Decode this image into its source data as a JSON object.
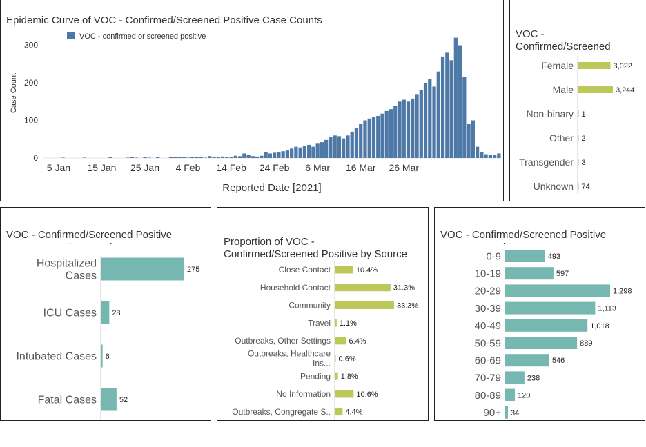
{
  "epi": {
    "title": "Epidemic Curve of VOC - Confirmed/Screened Positive Case Counts",
    "legend": "VOC - confirmed or screened positive",
    "ylabel": "Case Count",
    "xlabel": "Reported Date [2021]",
    "bar_color": "#4e79a7"
  },
  "gender": {
    "title": "VOC -\nConfirmed/Screened",
    "bar_color": "#bcc95a"
  },
  "severity": {
    "title": "VOC - Confirmed/Screened Positive\nCase Counts by Severity",
    "bar_color": "#76b7b2"
  },
  "source": {
    "title": "Proportion of VOC -\nConfirmed/Screened Positive by Source",
    "bar_color": "#bcc95a"
  },
  "age": {
    "title": "VOC - Confirmed/Screened Positive\nCase Counts by Age Group",
    "bar_color": "#76b7b2"
  },
  "chart_data": [
    {
      "id": "epi",
      "type": "bar",
      "title": "Epidemic Curve of VOC - Confirmed/Screened Positive Case Counts",
      "xlabel": "Reported Date [2021]",
      "ylabel": "Case Count",
      "ylim": [
        0,
        345
      ],
      "yticks": [
        0,
        100,
        200,
        300
      ],
      "x_start": "2021-01-02",
      "xticks": [
        {
          "date": "2021-01-05",
          "label": "5 Jan"
        },
        {
          "date": "2021-01-15",
          "label": "15 Jan"
        },
        {
          "date": "2021-01-25",
          "label": "25 Jan"
        },
        {
          "date": "2021-02-04",
          "label": "4 Feb"
        },
        {
          "date": "2021-02-14",
          "label": "14 Feb"
        },
        {
          "date": "2021-02-24",
          "label": "24 Feb"
        },
        {
          "date": "2021-03-06",
          "label": "6 Mar"
        },
        {
          "date": "2021-03-16",
          "label": "16 Mar"
        },
        {
          "date": "2021-03-26",
          "label": "26 Mar"
        }
      ],
      "series": [
        {
          "name": "VOC - confirmed or screened positive",
          "values": [
            0,
            0,
            0,
            0,
            1,
            0,
            0,
            0,
            0,
            1,
            0,
            0,
            0,
            0,
            0,
            2,
            0,
            0,
            0,
            1,
            2,
            1,
            0,
            3,
            1,
            0,
            2,
            0,
            0,
            3,
            2,
            3,
            2,
            1,
            3,
            2,
            2,
            1,
            5,
            3,
            2,
            4,
            3,
            2,
            6,
            5,
            12,
            8,
            5,
            4,
            6,
            15,
            12,
            14,
            15,
            18,
            20,
            25,
            30,
            28,
            32,
            35,
            30,
            38,
            42,
            48,
            55,
            60,
            58,
            52,
            60,
            70,
            80,
            90,
            100,
            105,
            110,
            112,
            118,
            125,
            130,
            138,
            150,
            155,
            150,
            158,
            170,
            180,
            200,
            210,
            190,
            230,
            270,
            280,
            260,
            320,
            300,
            215,
            90,
            100,
            30,
            15,
            10,
            8,
            8,
            12
          ]
        }
      ]
    },
    {
      "id": "gender",
      "type": "bar",
      "orientation": "horizontal",
      "title": "VOC - Confirmed/Screened",
      "categories": [
        "Female",
        "Male",
        "Non-binary",
        "Other",
        "Transgender",
        "Unknown"
      ],
      "values": [
        3022,
        3244,
        1,
        2,
        3,
        74
      ],
      "labels": [
        "3,022",
        "3,244",
        "1",
        "2",
        "3",
        "74"
      ]
    },
    {
      "id": "severity",
      "type": "bar",
      "orientation": "horizontal",
      "title": "VOC - Confirmed/Screened Positive Case Counts by Severity",
      "categories": [
        "Hospitalized Cases",
        "ICU Cases",
        "Intubated Cases",
        "Fatal Cases"
      ],
      "values": [
        275,
        28,
        6,
        52
      ],
      "labels": [
        "275",
        "28",
        "6",
        "52"
      ]
    },
    {
      "id": "source",
      "type": "bar",
      "orientation": "horizontal",
      "title": "Proportion of VOC - Confirmed/Screened Positive by Source",
      "categories": [
        "Close Contact",
        "Household Contact",
        "Community",
        "Travel",
        "Outbreaks, Other Settings",
        "Outbreaks, Healthcare Ins...",
        "Pending",
        "No Information",
        "Outbreaks, Congregate S.."
      ],
      "values": [
        10.4,
        31.3,
        33.3,
        1.1,
        6.4,
        0.6,
        1.8,
        10.6,
        4.4
      ],
      "labels": [
        "10.4%",
        "31.3%",
        "33.3%",
        "1.1%",
        "6.4%",
        "0.6%",
        "1.8%",
        "10.6%",
        "4.4%"
      ]
    },
    {
      "id": "age",
      "type": "bar",
      "orientation": "horizontal",
      "title": "VOC - Confirmed/Screened Positive Case Counts by Age Group",
      "categories": [
        "0-9",
        "10-19",
        "20-29",
        "30-39",
        "40-49",
        "50-59",
        "60-69",
        "70-79",
        "80-89",
        "90+"
      ],
      "values": [
        493,
        597,
        1298,
        1113,
        1018,
        889,
        546,
        238,
        120,
        34
      ],
      "labels": [
        "493",
        "597",
        "1,298",
        "1,113",
        "1,018",
        "889",
        "546",
        "238",
        "120",
        "34"
      ]
    }
  ]
}
